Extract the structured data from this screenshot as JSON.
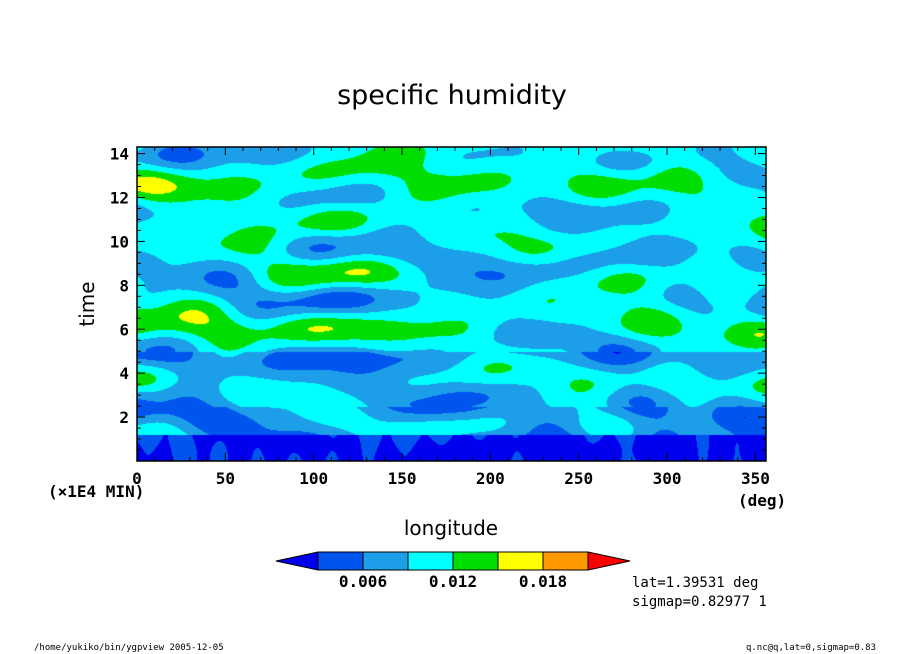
{
  "chart_data": {
    "type": "heatmap",
    "title": "specific humidity",
    "xlabel": "longitude",
    "ylabel": "time",
    "x_unit": "(deg)",
    "y_unit": "(×1E4 MIN)",
    "xlim": [
      0,
      356
    ],
    "ylim": [
      0,
      14.3
    ],
    "x_ticks": [
      0,
      50,
      100,
      150,
      200,
      250,
      300,
      350
    ],
    "y_ticks": [
      2,
      4,
      6,
      8,
      10,
      12,
      14
    ],
    "colorbar": {
      "levels": [
        0.003,
        0.006,
        0.009,
        0.012,
        0.015,
        0.018,
        0.021
      ],
      "tick_labels": [
        "0.006",
        "0.012",
        "0.018"
      ],
      "colors": [
        "#0000ee",
        "#0055ee",
        "#1c9ee8",
        "#00ffff",
        "#00dd00",
        "#ffff00",
        "#ff9900",
        "#ff0000"
      ]
    }
  },
  "annotations": {
    "lat": "lat=1.39531 deg",
    "sigmap": "sigmap=0.82977 1"
  },
  "footer": {
    "left": "/home/yukiko/bin/ygpview  2005-12-05",
    "right": "q.nc@q,lat=0,sigmap=0.83"
  }
}
